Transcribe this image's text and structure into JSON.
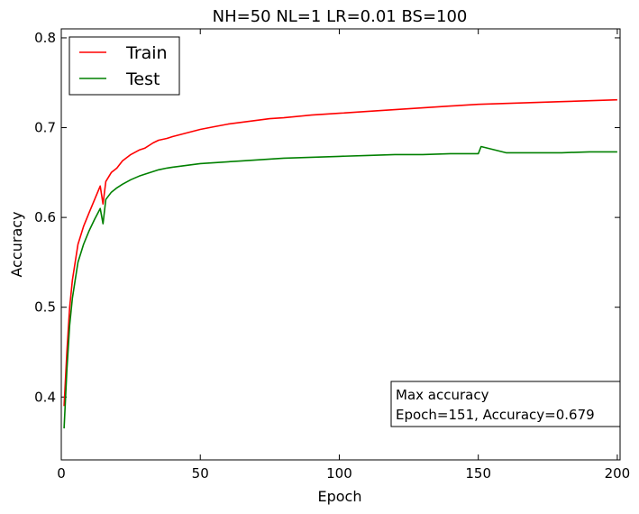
{
  "chart_data": {
    "type": "line",
    "title": "NH=50 NL=1 LR=0.01 BS=100",
    "xlabel": "Epoch",
    "ylabel": "Accuracy",
    "xlim": [
      0,
      201
    ],
    "ylim": [
      0.33,
      0.81
    ],
    "xticks": [
      0,
      50,
      100,
      150,
      200
    ],
    "yticks": [
      0.4,
      0.5,
      0.6,
      0.7,
      0.8
    ],
    "grid": false,
    "legend_position": "upper-left",
    "series": [
      {
        "name": "Train",
        "color": "#ff0000",
        "x": [
          1,
          2,
          3,
          4,
          5,
          6,
          8,
          10,
          12,
          14,
          15,
          16,
          18,
          20,
          22,
          25,
          28,
          30,
          33,
          35,
          38,
          40,
          45,
          50,
          55,
          60,
          65,
          70,
          75,
          80,
          90,
          100,
          110,
          120,
          130,
          140,
          150,
          160,
          170,
          180,
          190,
          200
        ],
        "y": [
          0.39,
          0.45,
          0.5,
          0.53,
          0.55,
          0.57,
          0.59,
          0.605,
          0.62,
          0.635,
          0.615,
          0.64,
          0.65,
          0.655,
          0.663,
          0.67,
          0.675,
          0.677,
          0.683,
          0.686,
          0.688,
          0.69,
          0.694,
          0.698,
          0.701,
          0.704,
          0.706,
          0.708,
          0.71,
          0.711,
          0.714,
          0.716,
          0.718,
          0.72,
          0.722,
          0.724,
          0.726,
          0.727,
          0.728,
          0.729,
          0.73,
          0.731
        ]
      },
      {
        "name": "Test",
        "color": "#008000",
        "x": [
          1,
          2,
          3,
          4,
          5,
          6,
          8,
          10,
          12,
          14,
          15,
          16,
          18,
          20,
          22,
          25,
          28,
          30,
          33,
          35,
          38,
          40,
          45,
          50,
          55,
          60,
          65,
          70,
          75,
          80,
          90,
          100,
          110,
          120,
          130,
          140,
          150,
          151,
          160,
          170,
          180,
          190,
          200
        ],
        "y": [
          0.365,
          0.43,
          0.48,
          0.51,
          0.53,
          0.55,
          0.57,
          0.585,
          0.598,
          0.61,
          0.593,
          0.62,
          0.628,
          0.633,
          0.637,
          0.642,
          0.646,
          0.648,
          0.651,
          0.653,
          0.655,
          0.656,
          0.658,
          0.66,
          0.661,
          0.662,
          0.663,
          0.664,
          0.665,
          0.666,
          0.667,
          0.668,
          0.669,
          0.67,
          0.67,
          0.671,
          0.671,
          0.679,
          0.672,
          0.672,
          0.672,
          0.673,
          0.673
        ]
      }
    ],
    "annotation": {
      "line1": "Max accuracy",
      "line2": "Epoch=151, Accuracy=0.679",
      "position": "lower-right"
    }
  }
}
